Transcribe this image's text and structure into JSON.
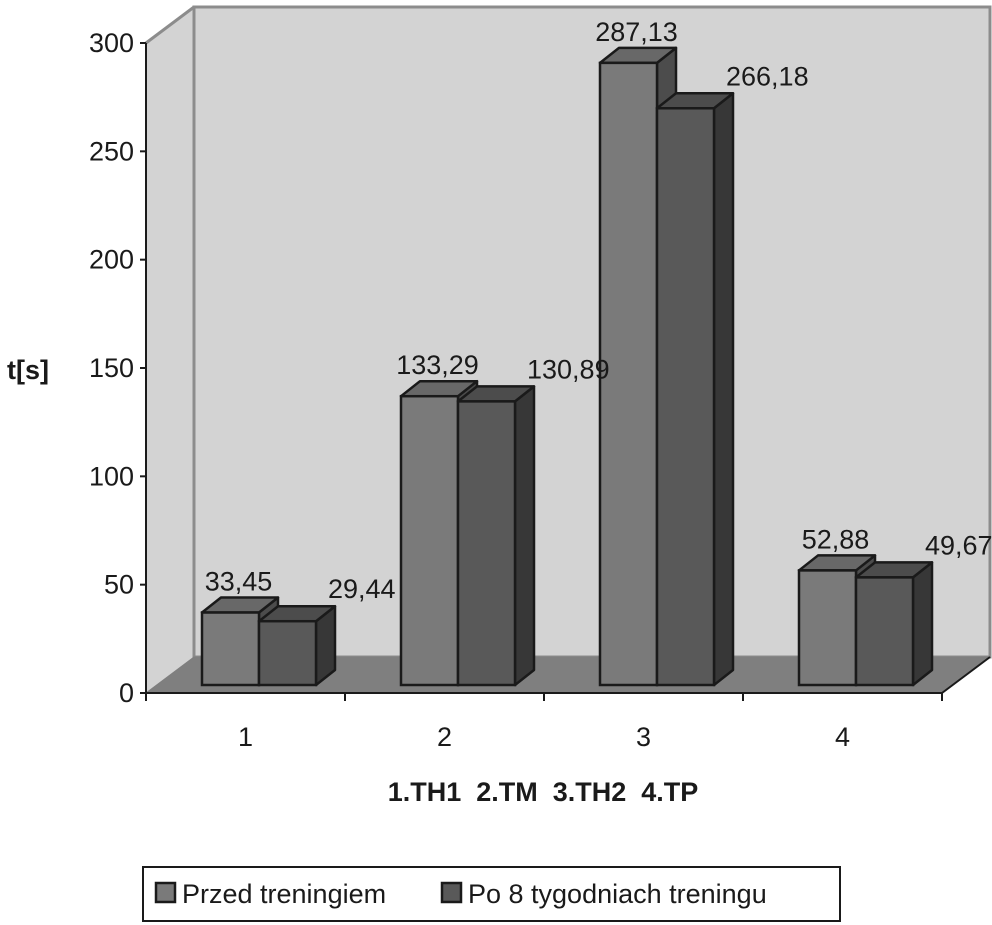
{
  "chart_data": {
    "type": "bar",
    "categories": [
      "1",
      "2",
      "3",
      "4"
    ],
    "series": [
      {
        "name": "Przed treningiem",
        "values": [
          33.45,
          133.29,
          287.13,
          52.88
        ],
        "labels": [
          "33,45",
          "133,29",
          "287,13",
          "52,88"
        ],
        "color": "#7a7a7a"
      },
      {
        "name": "Po 8 tygodniach treningu",
        "values": [
          29.44,
          130.89,
          266.18,
          49.67
        ],
        "labels": [
          "29,44",
          "130,89",
          "266,18",
          "49,67"
        ],
        "color": "#595959"
      }
    ],
    "ylabel": "t[s]",
    "xlabel": "1.TH1  2.TM  3.TH2  4.TP",
    "ylim": [
      0,
      300
    ],
    "yticks": [
      "0",
      "50",
      "100",
      "150",
      "200",
      "250",
      "300"
    ],
    "grid": false,
    "legend_position": "bottom",
    "style": "3d-clustered-column",
    "colors": {
      "wall": "#d3d3d3",
      "floor": "#7f7f7f",
      "outline": "#1a1a1a"
    }
  }
}
